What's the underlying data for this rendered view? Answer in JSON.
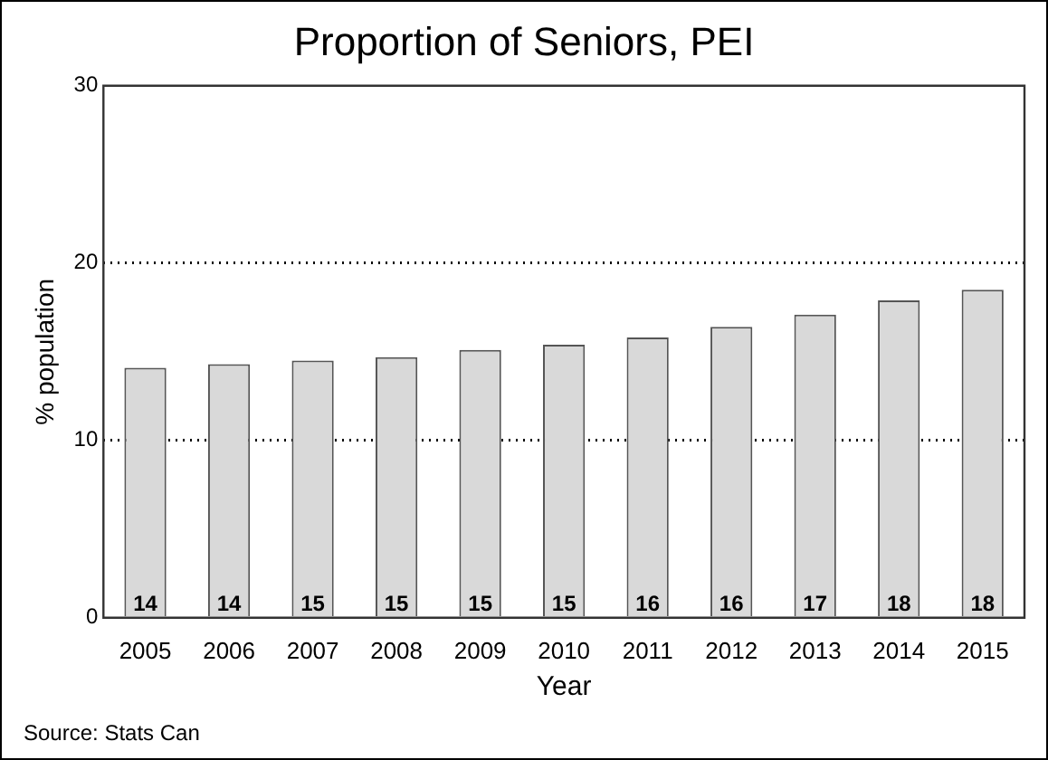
{
  "chart_data": {
    "type": "bar",
    "title": "Proportion of Seniors, PEI",
    "xlabel": "Year",
    "ylabel": "% population",
    "categories": [
      "2005",
      "2006",
      "2007",
      "2008",
      "2009",
      "2010",
      "2011",
      "2012",
      "2013",
      "2014",
      "2015"
    ],
    "values": [
      14.1,
      14.3,
      14.5,
      14.7,
      15.1,
      15.4,
      15.8,
      16.4,
      17.1,
      17.9,
      18.5
    ],
    "value_labels": [
      "14",
      "14",
      "15",
      "15",
      "15",
      "15",
      "16",
      "16",
      "17",
      "18",
      "18"
    ],
    "color": "#d9d9d9",
    "ylim": [
      0,
      30
    ],
    "yticks": [
      0,
      10,
      20,
      30
    ],
    "grid": "y",
    "annotations": [
      "Source: Stats Can"
    ]
  }
}
